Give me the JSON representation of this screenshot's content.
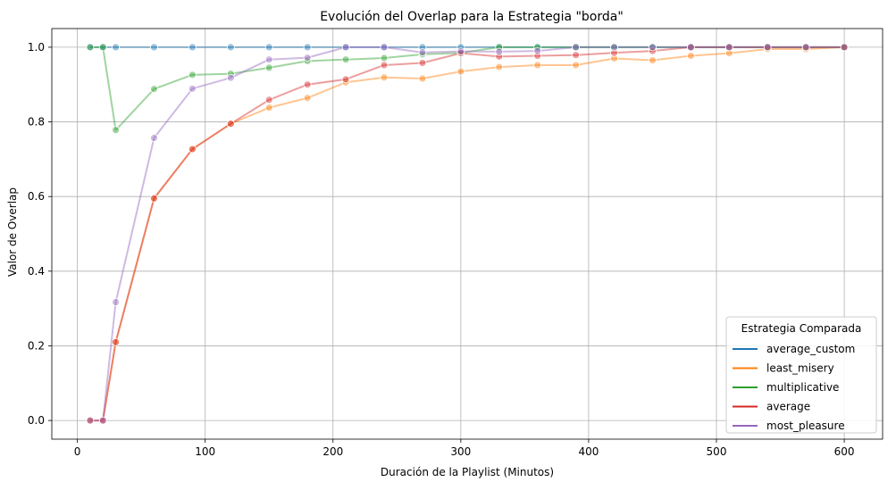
{
  "chart_data": {
    "type": "line",
    "title": "Evolución del Overlap para la Estrategia \"borda\"",
    "xlabel": "Duración de la Playlist (Minutos)",
    "ylabel": "Valor de Overlap",
    "xlim": [
      -20,
      630
    ],
    "ylim": [
      -0.05,
      1.05
    ],
    "xticks": [
      0,
      100,
      200,
      300,
      400,
      500,
      600
    ],
    "yticks": [
      0.0,
      0.2,
      0.4,
      0.6,
      0.8,
      1.0
    ],
    "xtick_labels": [
      "0",
      "100",
      "200",
      "300",
      "400",
      "500",
      "600"
    ],
    "ytick_labels": [
      "0.0",
      "0.2",
      "0.4",
      "0.6",
      "0.8",
      "1.0"
    ],
    "grid": true,
    "legend": {
      "title": "Estrategia Comparada",
      "position": "lower-right"
    },
    "x": [
      10,
      20,
      30,
      60,
      90,
      120,
      150,
      180,
      210,
      240,
      270,
      300,
      330,
      360,
      390,
      420,
      450,
      480,
      510,
      540,
      570,
      600
    ],
    "series": [
      {
        "name": "average_custom",
        "color": "#1f77b4",
        "values": [
          1,
          1,
          1,
          1,
          1,
          1,
          1,
          1,
          1,
          1,
          1,
          1,
          1,
          1,
          1,
          1,
          1,
          1,
          1,
          1,
          1,
          1
        ]
      },
      {
        "name": "least_misery",
        "color": "#ff7f0e",
        "values": [
          0,
          0,
          0.21,
          0.595,
          0.727,
          0.795,
          0.838,
          0.864,
          0.906,
          0.919,
          0.916,
          0.935,
          0.947,
          0.952,
          0.952,
          0.97,
          0.965,
          0.977,
          0.984,
          0.995,
          0.995,
          1.0
        ]
      },
      {
        "name": "multiplicative",
        "color": "#2ca02c",
        "values": [
          1,
          1,
          0.778,
          0.888,
          0.926,
          0.929,
          0.945,
          0.963,
          0.967,
          0.971,
          0.981,
          0.985,
          1,
          1,
          1,
          1,
          1,
          1,
          1,
          1,
          1,
          1
        ]
      },
      {
        "name": "average",
        "color": "#d62728",
        "values": [
          0,
          0,
          0.21,
          0.595,
          0.727,
          0.795,
          0.859,
          0.9,
          0.914,
          0.952,
          0.958,
          0.984,
          0.975,
          0.977,
          0.979,
          0.985,
          0.99,
          1,
          1,
          1,
          1,
          1
        ]
      },
      {
        "name": "most_pleasure",
        "color": "#9467bd",
        "values": [
          0,
          0,
          0.317,
          0.757,
          0.889,
          0.918,
          0.967,
          0.972,
          1,
          1,
          0.986,
          0.989,
          0.988,
          0.99,
          1,
          1,
          1,
          1,
          1,
          1,
          1,
          1
        ]
      }
    ]
  }
}
